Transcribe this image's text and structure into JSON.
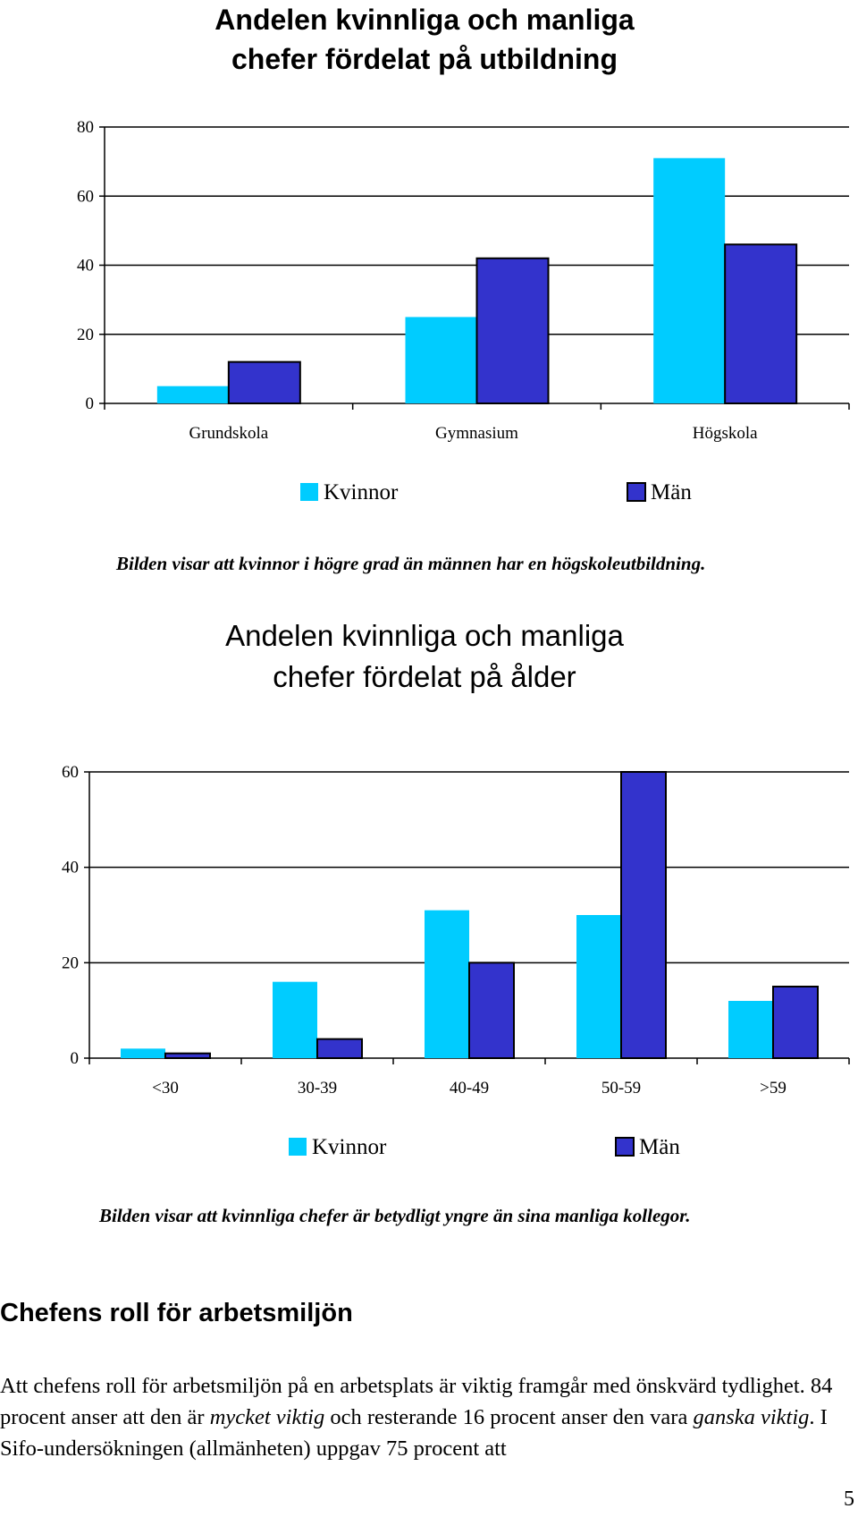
{
  "charts": [
    {
      "title_line1": "Andelen kvinnliga och manliga",
      "title_line2": "chefer fördelat på utbildning",
      "caption": "Bilden visar att kvinnor i högre grad än männen har en högskoleutbildning.",
      "legend": [
        "Kvinnor",
        "Män"
      ]
    },
    {
      "title_line1": "Andelen kvinnliga och manliga",
      "title_line2": "chefer fördelat på ålder",
      "caption": "Bilden visar att kvinnliga chefer är betydligt yngre än sina manliga kollegor.",
      "legend": [
        "Kvinnor",
        "Män"
      ]
    }
  ],
  "chart_data": [
    {
      "type": "bar",
      "title": "Andelen kvinnliga och manliga chefer fördelat på utbildning",
      "categories": [
        "Grundskola",
        "Gymnasium",
        "Högskola"
      ],
      "series": [
        {
          "name": "Kvinnor",
          "values": [
            5,
            25,
            71
          ],
          "color": "#00CCFF"
        },
        {
          "name": "Män",
          "values": [
            12,
            42,
            46
          ],
          "color": "#3333CC"
        }
      ],
      "ylim": [
        0,
        80
      ],
      "yticks": [
        0,
        20,
        40,
        60,
        80
      ],
      "ytick_labels": [
        "0",
        "20",
        "40",
        "60",
        "80"
      ],
      "grid": true,
      "legend_position": "bottom"
    },
    {
      "type": "bar",
      "title": "Andelen kvinnliga och manliga chefer fördelat på ålder",
      "categories": [
        "<30",
        "30-39",
        "40-49",
        "50-59",
        ">59"
      ],
      "series": [
        {
          "name": "Kvinnor",
          "values": [
            2,
            16,
            31,
            30,
            12
          ],
          "color": "#00CCFF"
        },
        {
          "name": "Män",
          "values": [
            1,
            4,
            20,
            60,
            15
          ],
          "color": "#3333CC"
        }
      ],
      "ylim": [
        0,
        60
      ],
      "yticks": [
        0,
        20,
        40,
        60
      ],
      "ytick_labels": [
        "0",
        "20",
        "40",
        "60"
      ],
      "grid": true,
      "legend_position": "bottom"
    }
  ],
  "section": {
    "heading": "Chefens roll för arbetsmiljön",
    "paragraph": [
      {
        "text": "Att chefens roll för arbetsmiljön på en arbetsplats är viktig framgår med önskvärd tydlighet. 84 procent anser att den är ",
        "italic": false
      },
      {
        "text": "mycket viktig",
        "italic": true
      },
      {
        "text": " och resterande 16 procent anser den vara ",
        "italic": false
      },
      {
        "text": "ganska viktig",
        "italic": true
      },
      {
        "text": ". I Sifo-undersökningen (allmänheten) uppgav 75 procent att",
        "italic": false
      }
    ]
  },
  "page_number": "5"
}
